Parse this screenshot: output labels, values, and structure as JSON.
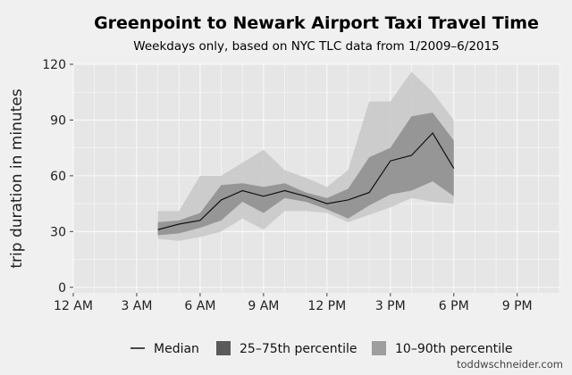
{
  "chart_data": {
    "type": "area",
    "title": "Greenpoint to Newark Airport Taxi Travel Time",
    "subtitle": "Weekdays only, based on NYC TLC data from 1/2009–6/2015",
    "xlabel": "",
    "ylabel": "trip duration in minutes",
    "xlim": [
      0,
      23
    ],
    "ylim": [
      -3,
      120
    ],
    "x_ticks": [
      0,
      3,
      6,
      9,
      12,
      15,
      18,
      21
    ],
    "x_tick_labels": [
      "12 AM",
      "3 AM",
      "6 AM",
      "9 AM",
      "12 PM",
      "3 PM",
      "6 PM",
      "9 PM"
    ],
    "y_ticks": [
      0,
      30,
      60,
      90,
      120
    ],
    "y_tick_labels": [
      "0",
      "30",
      "60",
      "90",
      "120"
    ],
    "grid": true,
    "legend_position": "bottom",
    "x": [
      4,
      5,
      6,
      7,
      8,
      9,
      10,
      11,
      12,
      13,
      14,
      15,
      16,
      17,
      18
    ],
    "series": [
      {
        "name": "Median",
        "kind": "line",
        "color": "#111111",
        "values": [
          31,
          34,
          36,
          47,
          52,
          49,
          52,
          49,
          45,
          47,
          51,
          68,
          71,
          83,
          64
        ]
      },
      {
        "name": "25–75th percentile",
        "kind": "band",
        "color": "#8c8c8c",
        "low": [
          28,
          29,
          32,
          36,
          46,
          40,
          48,
          46,
          42,
          37,
          44,
          50,
          52,
          57,
          49
        ],
        "high": [
          35,
          36,
          40,
          55,
          56,
          54,
          56,
          51,
          48,
          53,
          70,
          75,
          92,
          94,
          79
        ]
      },
      {
        "name": "10–90th percentile",
        "kind": "band",
        "color": "#c7c7c7",
        "low": [
          26,
          25,
          27,
          30,
          37,
          31,
          41,
          41,
          40,
          35,
          39,
          43,
          48,
          46,
          45
        ],
        "high": [
          41,
          41,
          60,
          60,
          67,
          74,
          63,
          59,
          54,
          63,
          100,
          100,
          116,
          105,
          90
        ]
      }
    ]
  },
  "credit": "toddwschneider.com"
}
